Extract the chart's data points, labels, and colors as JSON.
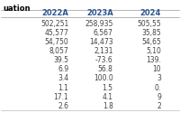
{
  "title": "uation",
  "columns": [
    "2022A",
    "2023A",
    "2024"
  ],
  "rows": [
    [
      "502,251",
      "258,935",
      "505,55"
    ],
    [
      "45,577",
      "6,567",
      "35,85"
    ],
    [
      "54,750",
      "14,473",
      "54,65"
    ],
    [
      "8,057",
      "2,131",
      "5,10"
    ],
    [
      "39.5",
      "-73.6",
      "139."
    ],
    [
      "6.9",
      "56.8",
      "10"
    ],
    [
      "3.4",
      "100.0",
      "3"
    ],
    [
      "1.1",
      "1.5",
      "0."
    ],
    [
      "17.1",
      "4.1",
      "9"
    ],
    [
      "2.6",
      "1.8",
      "2"
    ]
  ],
  "col_header_color": "#2c5591",
  "row_text_color": "#444444",
  "bg_color": "#ffffff",
  "title_color": "#000000",
  "font_size": 5.5,
  "header_font_size": 6.0
}
